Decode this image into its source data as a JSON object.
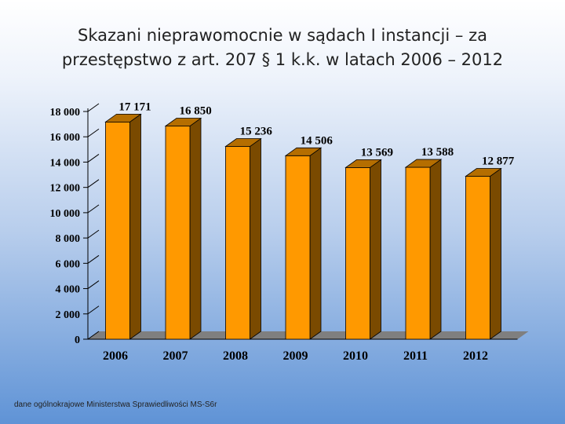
{
  "title_line1": "Skazani nieprawomocnie w sądach I instancji – za",
  "title_line2": "przestępstwo z art. 207 § 1 k.k. w latach 2006 – 2012",
  "footnote": "dane ogólnokrajowe Ministerstwa Sprawiedliwości MS-S6r",
  "colors": {
    "bar_front": "#FF9900",
    "bar_side": "#7A4A00",
    "bar_top": "#B56E00",
    "floor": "#7F7F7F"
  },
  "chart_data": {
    "type": "bar",
    "categories": [
      "2006",
      "2007",
      "2008",
      "2009",
      "2010",
      "2011",
      "2012"
    ],
    "values": [
      17171,
      16850,
      15236,
      14506,
      13569,
      13588,
      12877
    ],
    "value_labels": [
      "17 171",
      "16 850",
      "15 236",
      "14 506",
      "13 569",
      "13 588",
      "12 877"
    ],
    "y_ticks": [
      0,
      2000,
      4000,
      6000,
      8000,
      10000,
      12000,
      14000,
      16000,
      18000
    ],
    "y_tick_labels": [
      "0",
      "2 000",
      "4 000",
      "6 000",
      "8 000",
      "10 000",
      "12 000",
      "14 000",
      "16 000",
      "18 000"
    ],
    "ylim": [
      0,
      18000
    ],
    "style": "3d",
    "grid": false,
    "legend": "none"
  }
}
